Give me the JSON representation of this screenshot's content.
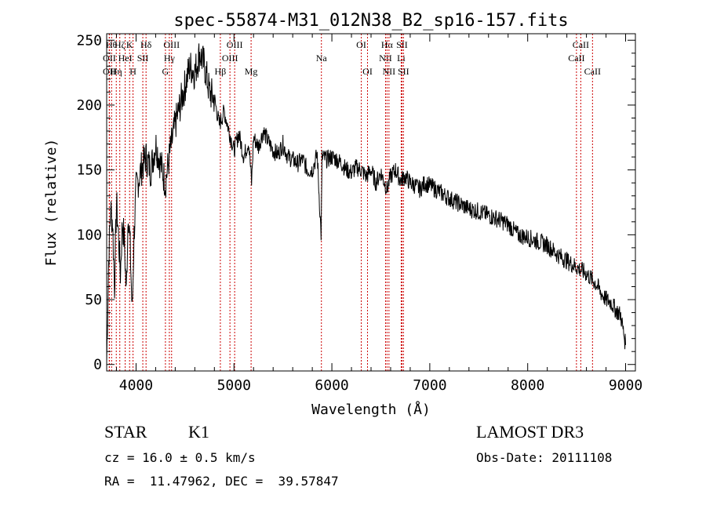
{
  "chart_data": {
    "type": "line",
    "title": "spec-55874-M31_012N38_B2_sp16-157.fits",
    "xlabel": "Wavelength (Å)",
    "ylabel": "Flux (relative)",
    "xlim": [
      3700,
      9100
    ],
    "ylim": [
      -5,
      255
    ],
    "xticks": [
      4000,
      5000,
      6000,
      7000,
      8000,
      9000
    ],
    "yticks": [
      0,
      50,
      100,
      150,
      200,
      250
    ],
    "grid": false,
    "series": [
      {
        "x": [
          3700,
          3720,
          3740,
          3760,
          3780,
          3800,
          3820,
          3840,
          3860,
          3880,
          3900,
          3920,
          3940,
          3960,
          3980,
          4000,
          4050,
          4100,
          4150,
          4200,
          4250,
          4300,
          4350,
          4400,
          4450,
          4500,
          4550,
          4600,
          4650,
          4700,
          4750,
          4800,
          4850,
          4900,
          4950,
          5000,
          5050,
          5100,
          5150,
          5180,
          5200,
          5250,
          5300,
          5350,
          5400,
          5450,
          5500,
          5550,
          5600,
          5650,
          5700,
          5750,
          5800,
          5850,
          5890,
          5900,
          5950,
          6000,
          6050,
          6100,
          6150,
          6200,
          6250,
          6300,
          6350,
          6400,
          6450,
          6500,
          6550,
          6563,
          6600,
          6650,
          6700,
          6750,
          6800,
          6850,
          6900,
          6950,
          7000,
          7100,
          7200,
          7300,
          7400,
          7500,
          7600,
          7700,
          7800,
          7900,
          8000,
          8100,
          8200,
          8300,
          8400,
          8500,
          8600,
          8700,
          8750,
          8800,
          8850,
          8900,
          8950,
          9000
        ],
        "y": [
          2,
          80,
          120,
          110,
          60,
          125,
          100,
          70,
          110,
          95,
          55,
          120,
          90,
          40,
          100,
          135,
          150,
          160,
          150,
          170,
          155,
          140,
          165,
          185,
          200,
          215,
          230,
          225,
          240,
          230,
          210,
          205,
          185,
          195,
          180,
          165,
          178,
          160,
          172,
          140,
          175,
          168,
          180,
          172,
          165,
          162,
          170,
          160,
          158,
          155,
          158,
          150,
          150,
          162,
          100,
          160,
          158,
          160,
          158,
          155,
          150,
          148,
          152,
          150,
          145,
          150,
          140,
          148,
          138,
          135,
          145,
          150,
          142,
          145,
          140,
          138,
          135,
          140,
          138,
          133,
          128,
          124,
          120,
          118,
          115,
          112,
          108,
          100,
          98,
          95,
          92,
          85,
          80,
          75,
          70,
          62,
          55,
          50,
          48,
          42,
          38,
          15
        ]
      }
    ],
    "line_labels": [
      {
        "x": 3750,
        "label": "Hθ",
        "row": 1
      },
      {
        "x": 3727,
        "label": "OII",
        "row": 2
      },
      {
        "x": 3727,
        "label": "OII",
        "row": 3
      },
      {
        "x": 3798,
        "label": "Hη",
        "row": 3
      },
      {
        "x": 3834,
        "label": "Hζ",
        "row": 1
      },
      {
        "x": 3889,
        "label": "HeI",
        "row": 2
      },
      {
        "x": 3934,
        "label": "K",
        "row": 1
      },
      {
        "x": 3969,
        "label": "H",
        "row": 3
      },
      {
        "x": 4069,
        "label": "SII",
        "row": 2
      },
      {
        "x": 4102,
        "label": "Hδ",
        "row": 1
      },
      {
        "x": 4300,
        "label": "G",
        "row": 3
      },
      {
        "x": 4340,
        "label": "Hγ",
        "row": 2
      },
      {
        "x": 4363,
        "label": "OIII",
        "row": 1
      },
      {
        "x": 4861,
        "label": "Hβ",
        "row": 3
      },
      {
        "x": 4959,
        "label": "OIII",
        "row": 2
      },
      {
        "x": 5007,
        "label": "OIII",
        "row": 1
      },
      {
        "x": 5175,
        "label": "Mg",
        "row": 3
      },
      {
        "x": 5893,
        "label": "Na",
        "row": 2
      },
      {
        "x": 6300,
        "label": "OI",
        "row": 1
      },
      {
        "x": 6364,
        "label": "OI",
        "row": 3
      },
      {
        "x": 6548,
        "label": "NII",
        "row": 2
      },
      {
        "x": 6563,
        "label": "Hα",
        "row": 1
      },
      {
        "x": 6583,
        "label": "NII",
        "row": 3
      },
      {
        "x": 6708,
        "label": "Li",
        "row": 2
      },
      {
        "x": 6716,
        "label": "SII",
        "row": 1
      },
      {
        "x": 6731,
        "label": "SII",
        "row": 3
      },
      {
        "x": 8498,
        "label": "CaII",
        "row": 2
      },
      {
        "x": 8542,
        "label": "CaII",
        "row": 1
      },
      {
        "x": 8662,
        "label": "CaII",
        "row": 3
      }
    ]
  },
  "info": {
    "class": "STAR",
    "subclass": "K1",
    "survey": "LAMOST DR3",
    "cz": "cz = 16.0 ± 0.5 km/s",
    "obs_date": "Obs-Date: 20111108",
    "coords": "RA =  11.47962, DEC =  39.57847"
  },
  "colors": {
    "line_marker": "#cc0000",
    "spectrum": "#000000"
  }
}
